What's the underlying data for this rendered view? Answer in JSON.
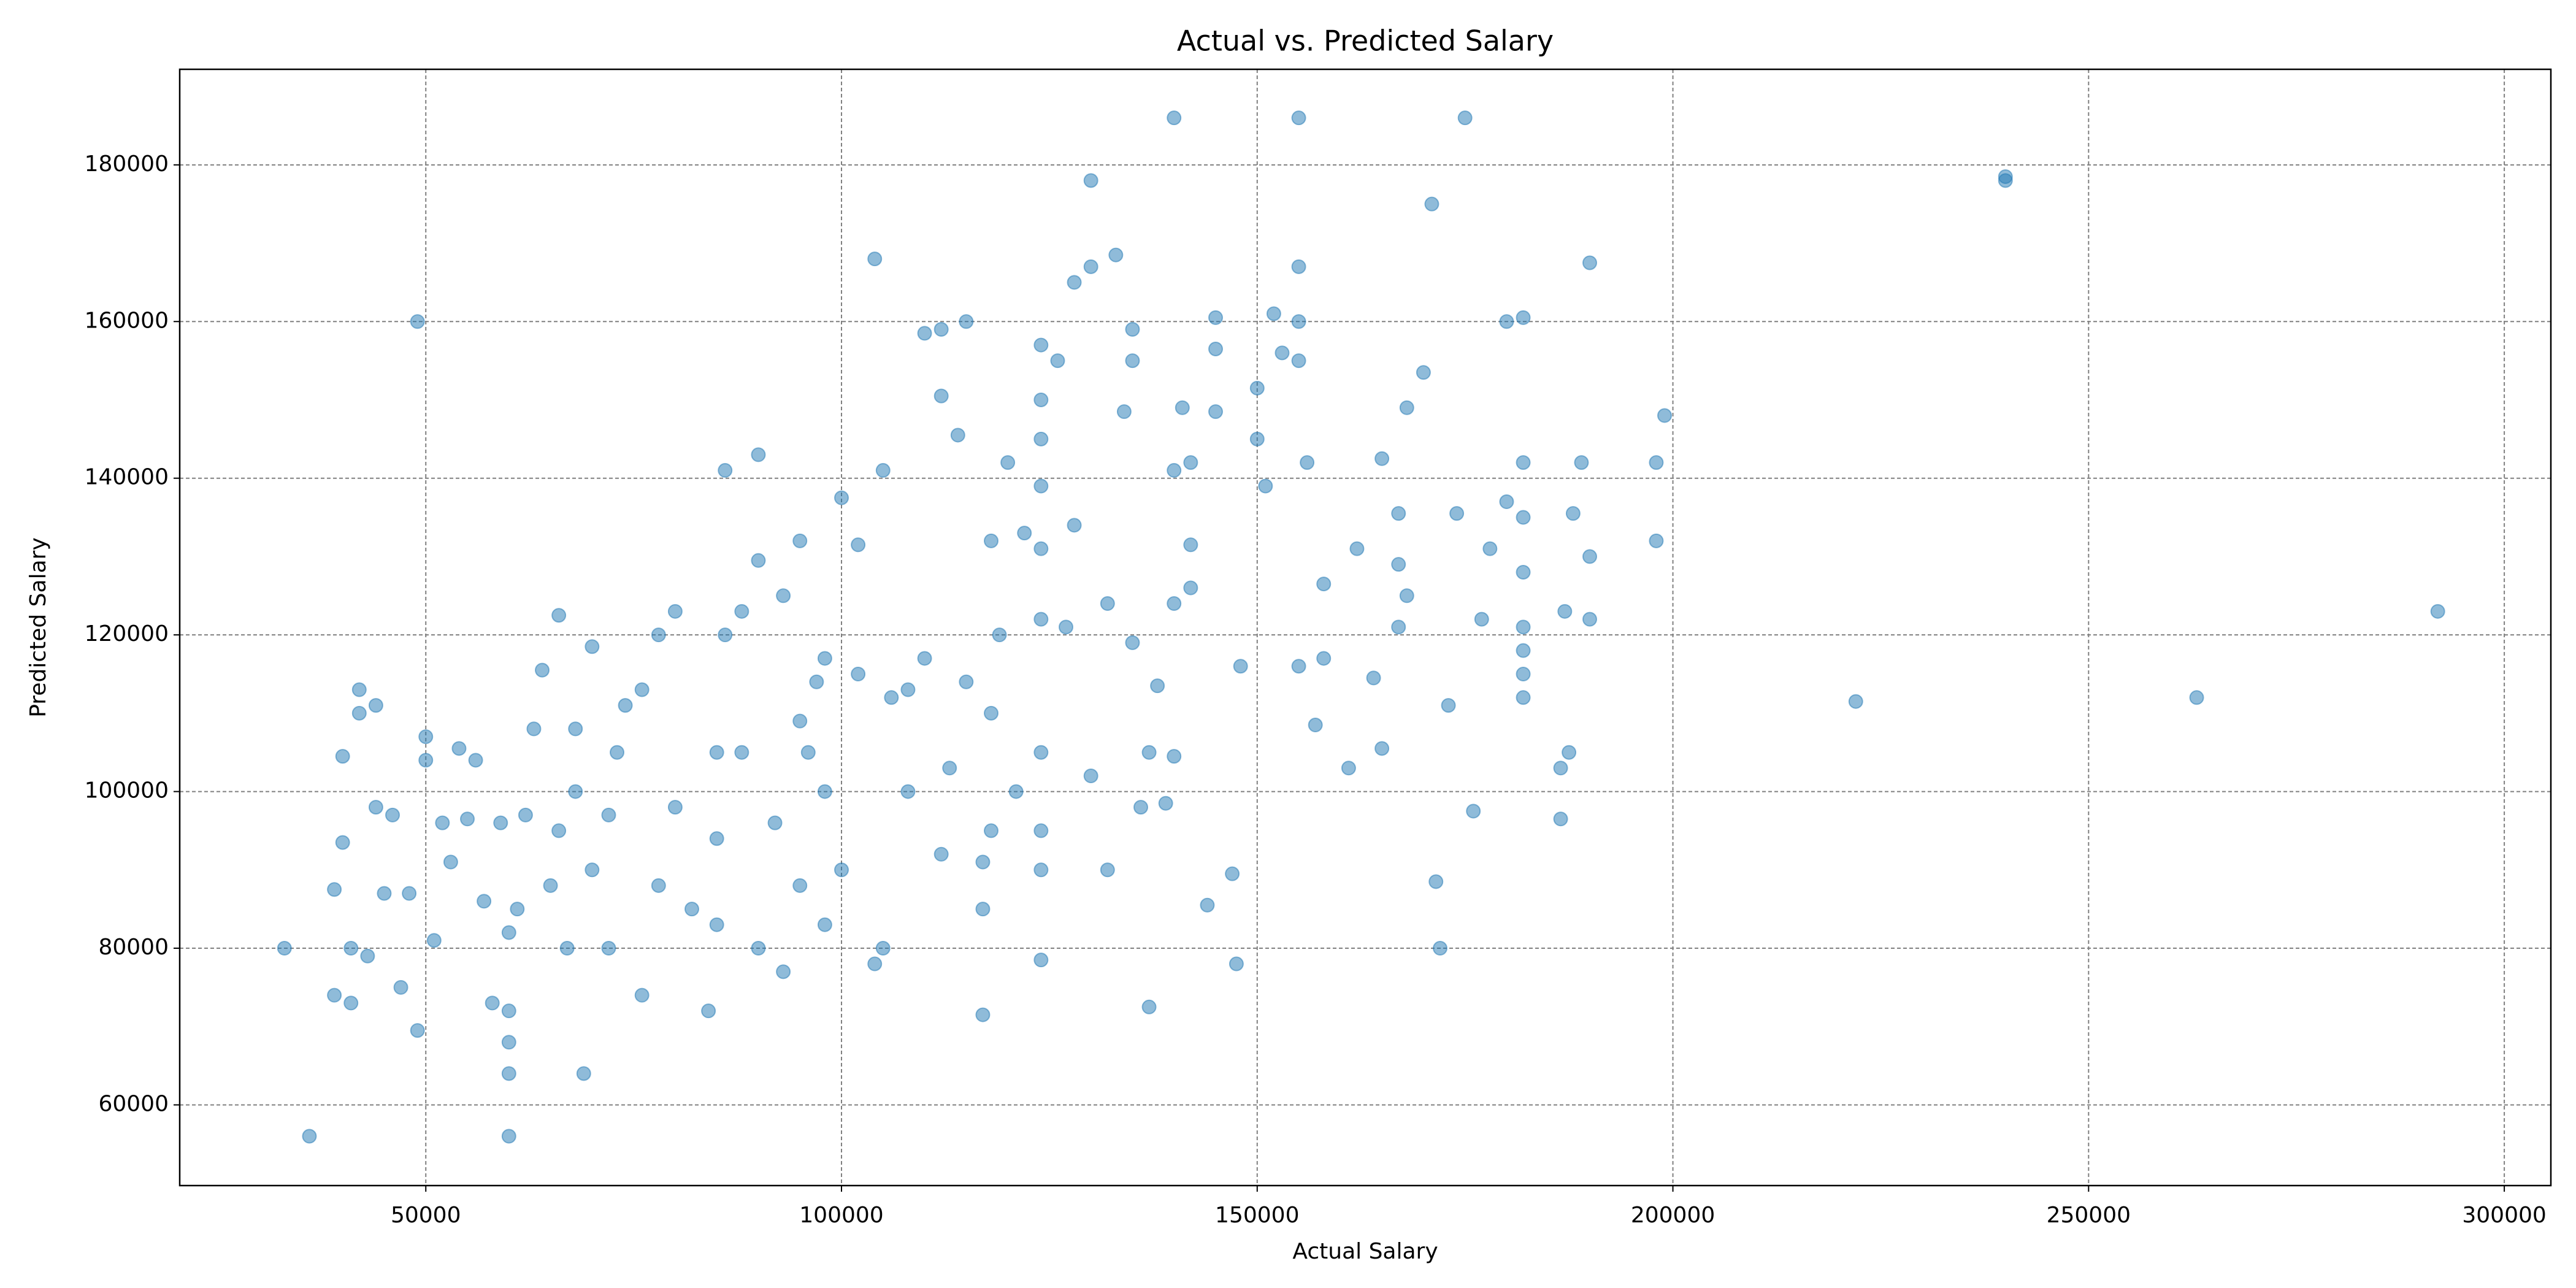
{
  "chart_data": {
    "type": "scatter",
    "title": "Actual vs. Predicted Salary",
    "x_label": "Actual Salary",
    "y_label": "Predicted Salary",
    "color": "#1f77b4",
    "grid": true,
    "xlim": [
      20400,
      305600
    ],
    "ylim": [
      49700,
      192200
    ],
    "xticks": [
      50000,
      100000,
      150000,
      200000,
      250000,
      300000
    ],
    "yticks": [
      60000,
      80000,
      100000,
      120000,
      140000,
      160000,
      180000
    ],
    "x": [
      33000,
      36000,
      49000,
      60000,
      240000,
      240000,
      222000,
      263000,
      292000,
      172000,
      171500,
      140000,
      155000,
      175000,
      130000,
      171000,
      190000,
      199000,
      198000,
      198000,
      190000,
      190000,
      189000,
      188000,
      187000,
      187500,
      186500,
      186500,
      182000,
      180000,
      182000,
      182000,
      182000,
      182000,
      182000,
      182000,
      182000,
      180000,
      178000,
      177000,
      176000,
      174000,
      173000,
      170000,
      168000,
      168000,
      167000,
      167000,
      167000,
      165000,
      165000,
      164000,
      161000,
      162000,
      158000,
      158000,
      157000,
      156000,
      155000,
      155000,
      155000,
      155000,
      153000,
      152000,
      150000,
      150000,
      151000,
      148000,
      147500,
      147000,
      145000,
      145000,
      145000,
      144000,
      142000,
      142000,
      142000,
      141000,
      140000,
      140000,
      140000,
      139000,
      138000,
      137000,
      136000,
      135000,
      135000,
      134000,
      133000,
      130000,
      128000,
      126000,
      124000,
      124000,
      124000,
      124000,
      124000,
      122000,
      124000,
      124000,
      124000,
      124000,
      124000,
      120000,
      118000,
      118000,
      118000,
      117000,
      117000,
      115000,
      114000,
      112000,
      112000,
      110000,
      108000,
      104000,
      105000,
      102000,
      100000,
      98000,
      95000,
      93000,
      90000,
      90000,
      88000,
      86000,
      86000,
      85000,
      85000,
      84000,
      80000,
      78000,
      76000,
      74000,
      73000,
      72000,
      70000,
      69000,
      68000,
      66000,
      66000,
      64000,
      63000,
      62000,
      61000,
      60000,
      60000,
      60000,
      60000,
      59000,
      58000,
      57000,
      56000,
      55000,
      54000,
      53000,
      52000,
      51000,
      50000,
      50000,
      49000,
      48000,
      47000,
      46000,
      45000,
      44000,
      44000,
      43000,
      42000,
      42000,
      41000,
      41000,
      40000,
      40000,
      39000,
      39000,
      92000,
      95000,
      96000,
      97000,
      98000,
      100000,
      102000,
      105000,
      106000,
      108000,
      110000,
      112000,
      113000,
      115000,
      117000,
      119000,
      121000,
      127000,
      128000,
      130000,
      132000,
      132000,
      135000,
      137000,
      76000,
      78000,
      80000,
      82000,
      88000,
      90000,
      93000,
      95000,
      104000,
      98000,
      85000,
      70000,
      72000,
      67000,
      65000,
      68000
    ],
    "values": [
      80000,
      56000,
      160000,
      56000,
      178500,
      178000,
      111500,
      112000,
      123000,
      80000,
      88500,
      186000,
      186000,
      186000,
      178000,
      175000,
      167500,
      148000,
      142000,
      132000,
      130000,
      122000,
      142000,
      135500,
      123000,
      105000,
      103000,
      96500,
      160500,
      160000,
      142000,
      135000,
      128000,
      121000,
      118000,
      115000,
      112000,
      137000,
      131000,
      122000,
      97500,
      135500,
      111000,
      153500,
      149000,
      125000,
      135500,
      129000,
      121000,
      142500,
      105500,
      114500,
      103000,
      131000,
      126500,
      117000,
      108500,
      142000,
      167000,
      160000,
      155000,
      116000,
      156000,
      161000,
      151500,
      145000,
      139000,
      116000,
      78000,
      89500,
      160500,
      156500,
      148500,
      85500,
      142000,
      131500,
      126000,
      149000,
      141000,
      124000,
      104500,
      98500,
      113500,
      72500,
      98000,
      159000,
      155000,
      148500,
      168500,
      167000,
      165000,
      155000,
      157000,
      150000,
      145000,
      139000,
      131000,
      133000,
      122000,
      105000,
      95000,
      90000,
      78500,
      142000,
      132000,
      110000,
      95000,
      85000,
      71500,
      160000,
      145500,
      150500,
      159000,
      158500,
      113000,
      168000,
      141000,
      131500,
      137500,
      117000,
      132000,
      125000,
      143000,
      129500,
      123000,
      141000,
      120000,
      105000,
      94000,
      72000,
      123000,
      120000,
      113000,
      111000,
      105000,
      97000,
      118500,
      64000,
      108000,
      122500,
      95000,
      115500,
      108000,
      97000,
      85000,
      64000,
      68000,
      72000,
      82000,
      96000,
      73000,
      86000,
      104000,
      96500,
      105500,
      91000,
      96000,
      81000,
      107000,
      104000,
      69500,
      87000,
      75000,
      97000,
      87000,
      111000,
      98000,
      79000,
      113000,
      110000,
      80000,
      73000,
      104500,
      93500,
      87500,
      74000,
      96000,
      88000,
      105000,
      114000,
      83000,
      90000,
      115000,
      80000,
      112000,
      100000,
      117000,
      92000,
      103000,
      114000,
      91000,
      120000,
      100000,
      121000,
      134000,
      102000,
      90000,
      124000,
      119000,
      105000,
      74000,
      88000,
      98000,
      85000,
      105000,
      80000,
      77000,
      109000,
      78000,
      100000,
      83000,
      90000,
      80000,
      80000,
      88000,
      100000
    ]
  }
}
